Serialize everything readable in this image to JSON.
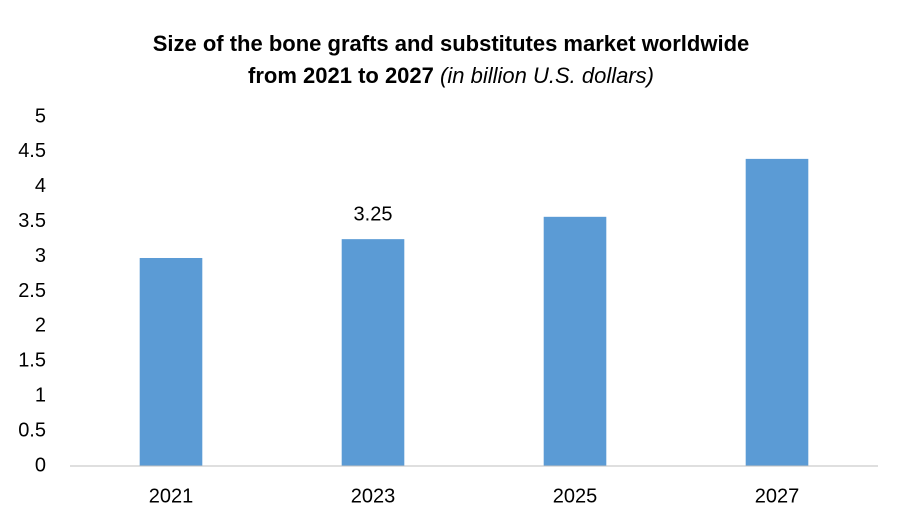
{
  "chart_data": {
    "type": "bar",
    "title": [
      "Size of the bone grafts and substitutes market worldwide",
      "from 2021 to 2027"
    ],
    "title_note": "(in billion U.S. dollars)",
    "categories": [
      "2021",
      "2023",
      "2025",
      "2027"
    ],
    "values": [
      2.98,
      3.25,
      3.57,
      4.4
    ],
    "value_labels": [
      null,
      "3.25",
      null,
      null
    ],
    "color": "#5b9bd5",
    "ylim": [
      0,
      5
    ],
    "yticks": [
      0,
      0.5,
      1,
      1.5,
      2,
      2.5,
      3,
      3.5,
      4,
      4.5,
      5
    ],
    "grid": false
  }
}
